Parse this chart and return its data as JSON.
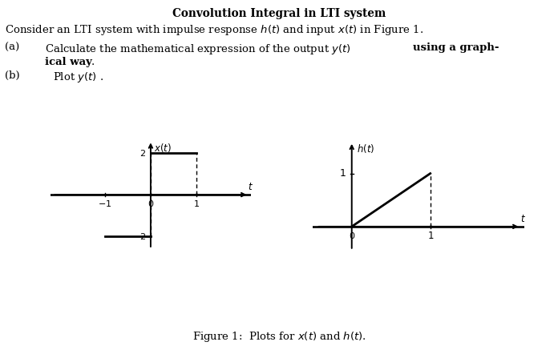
{
  "title": "Convolution Integral in LTI system",
  "intro_text": "Consider an LTI system with impulse response $h(t)$ and input $x(t)$ in Figure 1.",
  "part_a_label": "(a)",
  "part_b_label": "(b)",
  "part_b_text": "Plot $y(t)$ .",
  "fig_caption": "Figure 1:  Plots for $x(t)$ and $h(t)$.",
  "bg_color": "#ffffff"
}
